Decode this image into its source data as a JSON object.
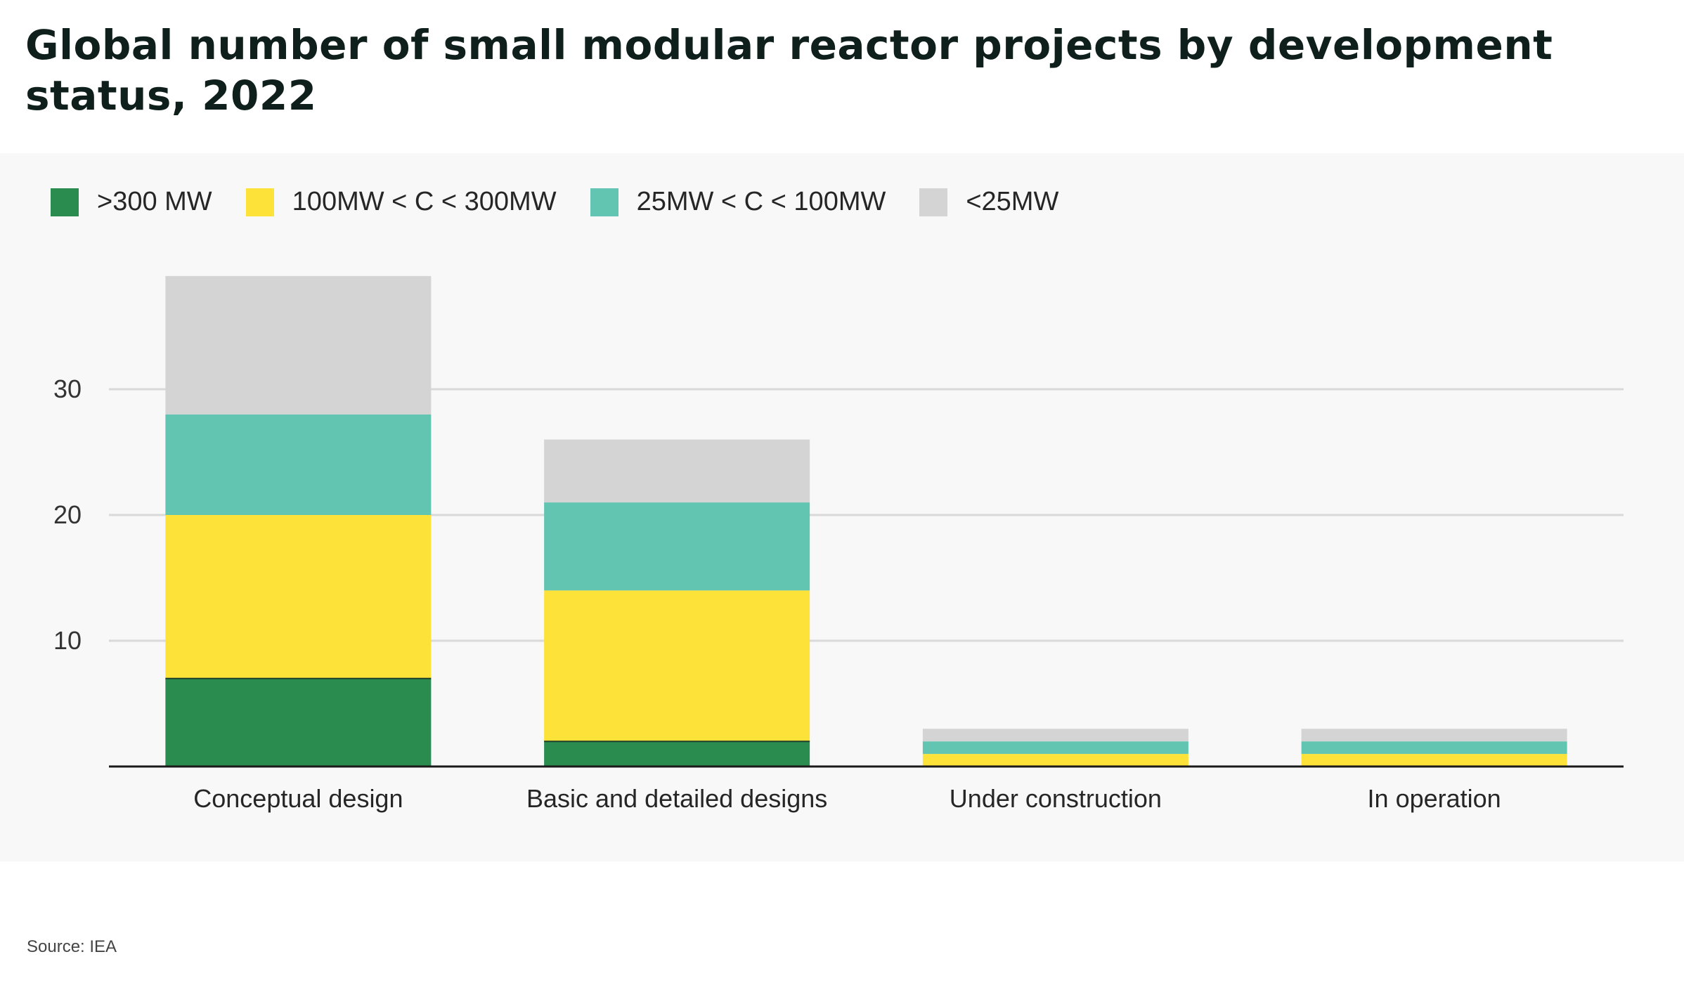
{
  "title": "Global number of small modular reactor projects by development status, 2022",
  "source": "Source: IEA",
  "chart_data": {
    "type": "bar",
    "stacked": true,
    "title": "Global number of small modular reactor projects by development status, 2022",
    "categories": [
      "Conceptual design",
      "Basic and detailed designs",
      "Under construction",
      "In operation"
    ],
    "series": [
      {
        "name": ">300 MW",
        "color": "#2a8d4f",
        "values": [
          7,
          2,
          0,
          0
        ]
      },
      {
        "name": "100MW < C < 300MW",
        "color": "#fde23a",
        "values": [
          13,
          12,
          1,
          1
        ]
      },
      {
        "name": "25MW < C < 100MW",
        "color": "#62c5b2",
        "values": [
          8,
          7,
          1,
          1
        ]
      },
      {
        "name": "<25MW",
        "color": "#d4d4d4",
        "values": [
          11,
          5,
          1,
          1
        ]
      }
    ],
    "yticks": [
      10,
      20,
      30
    ],
    "ylim": [
      0,
      40
    ],
    "grid": true,
    "legend_position": "top-left",
    "xlabel": "",
    "ylabel": ""
  }
}
